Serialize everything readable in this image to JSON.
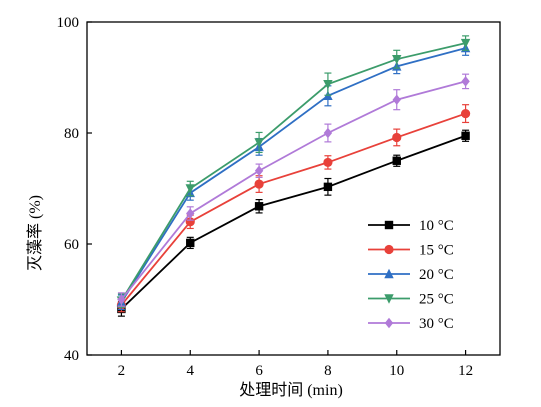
{
  "chart_data": {
    "type": "line",
    "title": "",
    "xlabel": "处理时间 (min)",
    "ylabel": "灭藻率 (%)",
    "x": [
      2,
      4,
      6,
      8,
      10,
      12
    ],
    "xlim": [
      1,
      13
    ],
    "ylim": [
      40,
      100
    ],
    "xticks": [
      2,
      4,
      6,
      8,
      10,
      12
    ],
    "yticks": [
      40,
      60,
      80,
      100
    ],
    "grid": false,
    "legend_position": "lower-right",
    "series": [
      {
        "name": "10 °C",
        "marker": "square",
        "color": "#000000",
        "values": [
          48.3,
          60.2,
          66.8,
          70.3,
          75.0,
          79.5
        ],
        "errors": [
          1.3,
          1.0,
          1.2,
          1.5,
          1.0,
          1.0
        ]
      },
      {
        "name": "15 °C",
        "marker": "circle",
        "color": "#e8413a",
        "values": [
          49.0,
          64.0,
          70.8,
          74.7,
          79.2,
          83.5
        ],
        "errors": [
          1.2,
          1.2,
          1.5,
          1.2,
          1.5,
          1.6
        ]
      },
      {
        "name": "20 °C",
        "marker": "triangle-up",
        "color": "#2f6fc4",
        "values": [
          49.5,
          69.2,
          77.5,
          86.7,
          92.0,
          95.3
        ],
        "errors": [
          1.3,
          1.3,
          1.5,
          1.8,
          1.3,
          1.3
        ]
      },
      {
        "name": "25 °C",
        "marker": "triangle-down",
        "color": "#3c9c6b",
        "values": [
          49.8,
          70.0,
          78.3,
          88.8,
          93.3,
          96.2
        ],
        "errors": [
          1.2,
          1.3,
          1.8,
          2.0,
          1.6,
          1.3
        ]
      },
      {
        "name": "30 °C",
        "marker": "diamond",
        "color": "#b07ad8",
        "values": [
          50.0,
          65.5,
          73.2,
          80.0,
          86.0,
          89.3
        ],
        "errors": [
          1.2,
          1.2,
          1.2,
          1.6,
          1.8,
          1.3
        ]
      }
    ]
  }
}
